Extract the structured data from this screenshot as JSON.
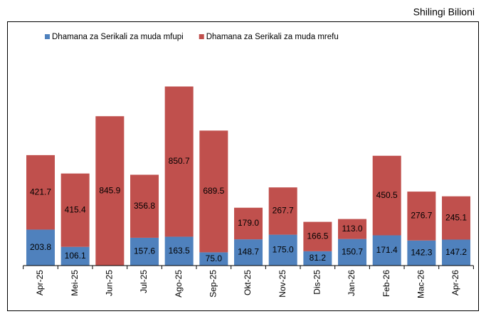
{
  "chart_data": {
    "type": "stacked_bar",
    "unit_label": "Shilingi Bilioni",
    "categories": [
      "Apr-25",
      "Mei-25",
      "Jun-25",
      "Jul-25",
      "Ago-25",
      "Sep-25",
      "Okt-25",
      "Nov-25",
      "Dis-25",
      "Jan-26",
      "Feb-26",
      "Mac-26",
      "Apr-26"
    ],
    "series": [
      {
        "name": "Dhamana za Serikali za muda mfupi",
        "color": "#4f81bd",
        "values": [
          203.8,
          106.1,
          0,
          157.6,
          163.5,
          75,
          148.7,
          175,
          81.2,
          150.7,
          171.4,
          142.3,
          147.2
        ],
        "value_labels": [
          "203.8",
          "106.1",
          "0.0",
          "157.6",
          "163.5",
          "75.0",
          "148.7",
          "175.0",
          "81.2",
          "150.7",
          "171.4",
          "142.3",
          "147.2"
        ]
      },
      {
        "name": "Dhamana za Serikali za muda mrefu",
        "color": "#c0504d",
        "values": [
          421.7,
          415.4,
          845.9,
          356.8,
          850.7,
          689.5,
          179,
          267.7,
          166.5,
          113,
          450.5,
          276.7,
          245.1
        ],
        "value_labels": [
          "421.7",
          "415.4",
          "845.9",
          "356.8",
          "850.7",
          "689.5",
          "179.0",
          "267.7",
          "166.5",
          "113.0",
          "450.5",
          "276.7",
          "245.1"
        ]
      }
    ],
    "ylim": [
      0,
      1200
    ],
    "legend": "top"
  }
}
